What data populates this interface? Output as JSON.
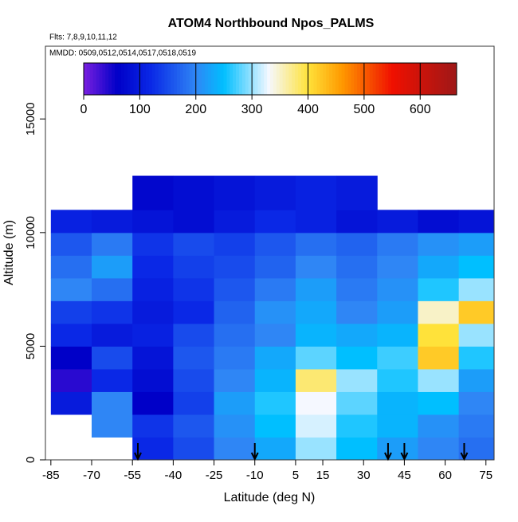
{
  "chart_data": {
    "type": "heatmap",
    "title": "ATOM4 Northbound Npos_PALMS",
    "subtitle": "Flts: 7,8,9,10,11,12",
    "annotation": "MMDD: 0509,0512,0514,0517,0518,0519",
    "x_label": "Latitude (deg N)",
    "y_label": "Altitude (m)",
    "xlim": [
      -87,
      78
    ],
    "ylim": [
      0,
      18200
    ],
    "xticks": [
      -85,
      -70,
      -55,
      -40,
      -25,
      -10,
      5,
      15,
      30,
      45,
      60,
      75
    ],
    "yticks": [
      0,
      5000,
      10000,
      15000
    ],
    "x_edges": [
      -85,
      -70,
      -55,
      -40,
      -25,
      -10,
      5,
      20,
      35,
      50,
      65,
      78
    ],
    "y_edges": [
      0,
      1000,
      2000,
      3000,
      4000,
      5000,
      6000,
      7000,
      8000,
      9000,
      10000,
      11000,
      12500
    ],
    "z": [
      [
        null,
        null,
        120,
        150,
        200,
        230,
        300,
        250,
        220,
        200,
        180
      ],
      [
        null,
        200,
        130,
        160,
        210,
        250,
        320,
        260,
        240,
        210,
        190
      ],
      [
        100,
        200,
        60,
        140,
        220,
        260,
        330,
        280,
        240,
        250,
        200
      ],
      [
        40,
        120,
        80,
        150,
        200,
        240,
        380,
        300,
        260,
        300,
        220
      ],
      [
        60,
        150,
        90,
        160,
        190,
        230,
        280,
        250,
        270,
        420,
        260
      ],
      [
        120,
        100,
        110,
        150,
        180,
        200,
        240,
        230,
        240,
        400,
        300
      ],
      [
        140,
        130,
        100,
        120,
        170,
        210,
        230,
        200,
        220,
        350,
        420
      ],
      [
        200,
        180,
        110,
        130,
        160,
        190,
        220,
        190,
        210,
        260,
        300
      ],
      [
        180,
        220,
        120,
        140,
        150,
        170,
        200,
        180,
        200,
        230,
        250
      ],
      [
        160,
        190,
        130,
        150,
        140,
        160,
        180,
        170,
        190,
        210,
        220
      ],
      [
        110,
        100,
        90,
        80,
        100,
        120,
        110,
        90,
        100,
        80,
        90
      ],
      [
        null,
        null,
        70,
        80,
        90,
        100,
        110,
        100,
        null,
        null,
        null
      ]
    ],
    "colorbar_lim": [
      0,
      665
    ],
    "colorbar_ticks": [
      0,
      100,
      200,
      300,
      400,
      500,
      600
    ],
    "colorscale": [
      [
        0,
        "#7a1fe0"
      ],
      [
        60,
        "#0000c8"
      ],
      [
        120,
        "#0a28e6"
      ],
      [
        200,
        "#2f86f5"
      ],
      [
        250,
        "#00bfff"
      ],
      [
        330,
        "#f5f8ff"
      ],
      [
        400,
        "#ffe23a"
      ],
      [
        460,
        "#ff9a00"
      ],
      [
        550,
        "#f01000"
      ],
      [
        665,
        "#9e1818"
      ]
    ],
    "arrows_x": [
      -53,
      -10,
      39,
      45,
      67
    ]
  }
}
